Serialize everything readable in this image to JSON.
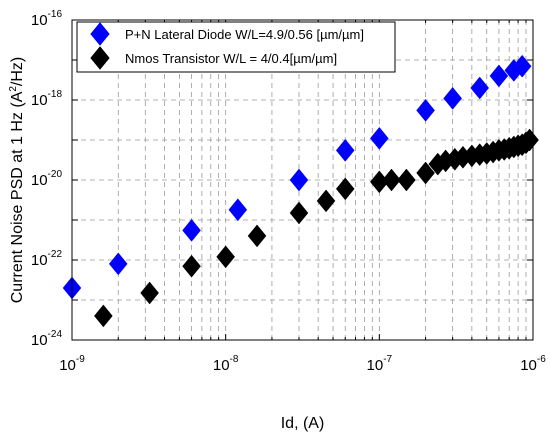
{
  "chart_data": {
    "type": "scatter",
    "x_scale": "log",
    "y_scale": "log",
    "xlim": [
      1e-09,
      1e-06
    ],
    "ylim": [
      1e-24,
      1e-16
    ],
    "xlabel": "Id, (A)",
    "ylabel_prefix": "Current Noise PSD at 1 Hz (A",
    "ylabel_sup": "2",
    "ylabel_suffix": "/Hz)",
    "grid": true,
    "legend_position": "top",
    "x_ticks": [
      {
        "base": "10",
        "exp": "-9",
        "value": 1e-09
      },
      {
        "base": "10",
        "exp": "-8",
        "value": 1e-08
      },
      {
        "base": "10",
        "exp": "-7",
        "value": 1e-07
      },
      {
        "base": "10",
        "exp": "-6",
        "value": 1e-06
      }
    ],
    "y_ticks": [
      {
        "base": "10",
        "exp": "-24",
        "value": 1e-24
      },
      {
        "base": "10",
        "exp": "-22",
        "value": 1e-22
      },
      {
        "base": "10",
        "exp": "-20",
        "value": 1e-20
      },
      {
        "base": "10",
        "exp": "-18",
        "value": 1e-18
      },
      {
        "base": "10",
        "exp": "-16",
        "value": 1e-16
      }
    ],
    "series": [
      {
        "name": "P+N Lateral Diode W/L=4.9/0.56 [µm/µm]",
        "color": "#0000ff",
        "marker": "diamond",
        "x": [
          1e-09,
          2e-09,
          6e-09,
          1.2e-08,
          3e-08,
          6e-08,
          1e-07,
          2e-07,
          3e-07,
          4.5e-07,
          6e-07,
          7.5e-07,
          8.5e-07
        ],
        "y": [
          2e-23,
          8e-23,
          5.5e-22,
          1.8e-21,
          1e-20,
          5.5e-20,
          1.1e-19,
          5.5e-19,
          1.1e-18,
          2e-18,
          4e-18,
          5.5e-18,
          7e-18
        ]
      },
      {
        "name": "Nmos Transistor W/L = 4/0.4[µm/µm]",
        "color": "#000000",
        "marker": "diamond",
        "x": [
          1.6e-09,
          3.2e-09,
          6e-09,
          1e-08,
          1.6e-08,
          3e-08,
          4.5e-08,
          6e-08,
          1e-07,
          1.2e-07,
          1.5e-07,
          2e-07,
          2.4e-07,
          2.7e-07,
          3.1e-07,
          3.5e-07,
          4e-07,
          4.5e-07,
          5e-07,
          5.5e-07,
          6e-07,
          6.5e-07,
          7e-07,
          7.5e-07,
          8e-07,
          8.5e-07,
          9e-07,
          9.5e-07
        ],
        "y": [
          4e-24,
          1.5e-23,
          7e-23,
          1.2e-22,
          4e-22,
          1.5e-21,
          3e-21,
          6e-21,
          9e-21,
          1e-20,
          1e-20,
          1.5e-20,
          2.5e-20,
          3e-20,
          3.3e-20,
          3.7e-20,
          4e-20,
          4.3e-20,
          4.6e-20,
          5e-20,
          5.5e-20,
          5.8e-20,
          6.2e-20,
          6.7e-20,
          7.2e-20,
          7.6e-20,
          8.5e-20,
          1e-19
        ]
      }
    ]
  }
}
